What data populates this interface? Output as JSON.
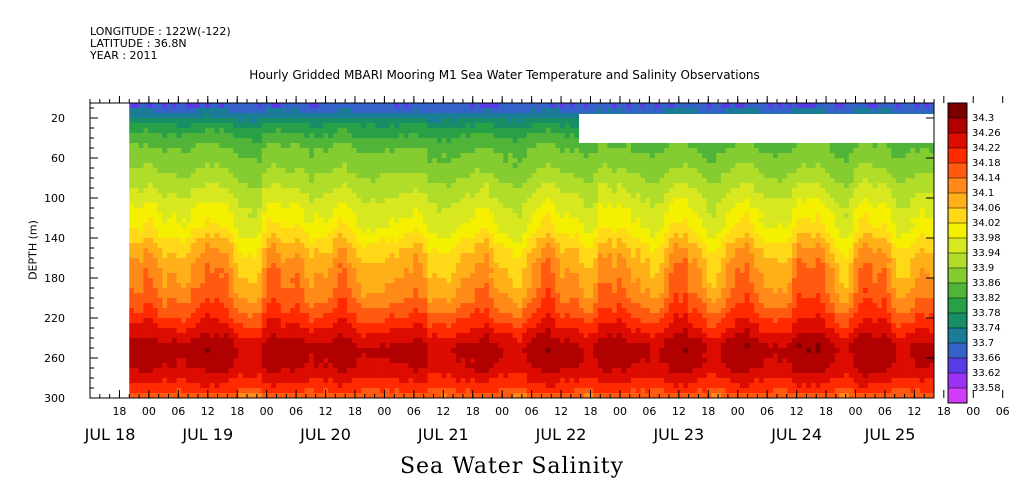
{
  "header": {
    "longitude": "LONGITUDE : 122W(-122)",
    "latitude": "LATITUDE : 36.8N",
    "year": "YEAR : 2011"
  },
  "chart_data": {
    "type": "heatmap",
    "title": "Hourly Gridded MBARI Mooring M1 Sea Water Temperature and Salinity Observations",
    "ylabel": "DEPTH (m)",
    "xlabel": "Sea Water Salinity",
    "ylim": [
      300,
      5
    ],
    "y_ticks": [
      20,
      60,
      100,
      140,
      180,
      220,
      260,
      300
    ],
    "x_hour_ticks": [
      "18",
      "00",
      "06",
      "12",
      "18",
      "00",
      "06",
      "12",
      "18",
      "00",
      "06",
      "12",
      "18",
      "00",
      "06",
      "12",
      "18",
      "00",
      "06",
      "12",
      "18",
      "00",
      "06",
      "12",
      "18",
      "00",
      "06",
      "12",
      "18",
      "00",
      "06",
      "12"
    ],
    "x_day_labels": [
      "JUL 18",
      "JUL 19",
      "JUL 20",
      "JUL 21",
      "JUL 22",
      "JUL 23",
      "JUL 24",
      "JUL 25"
    ],
    "x_range": [
      "2011-07-18T12:00",
      "2011-07-25T16:00"
    ],
    "data_start": "2011-07-18T20:00",
    "colorbar": {
      "levels": [
        "34.3",
        "34.26",
        "34.22",
        "34.18",
        "34.14",
        "34.1",
        "34.06",
        "34.02",
        "33.98",
        "33.94",
        "33.9",
        "33.86",
        "33.82",
        "33.78",
        "33.74",
        "33.7",
        "33.66",
        "33.62",
        "33.58"
      ],
      "colors": [
        "#7a0000",
        "#b00000",
        "#dc0c00",
        "#ff2a00",
        "#ff5a10",
        "#ff8a18",
        "#ffb018",
        "#ffd818",
        "#f4f000",
        "#d8e820",
        "#b0dc2a",
        "#84cc30",
        "#50b438",
        "#28a048",
        "#188e66",
        "#1a7c96",
        "#3462c8",
        "#5a3ce6",
        "#9c32f2",
        "#d23cf8"
      ]
    },
    "depth_profile_mean": [
      {
        "depth": 10,
        "salinity": 33.68
      },
      {
        "depth": 30,
        "salinity": 33.8
      },
      {
        "depth": 50,
        "salinity": 33.86
      },
      {
        "depth": 70,
        "salinity": 33.89
      },
      {
        "depth": 90,
        "salinity": 33.93
      },
      {
        "depth": 110,
        "salinity": 33.97
      },
      {
        "depth": 130,
        "salinity": 34.0
      },
      {
        "depth": 150,
        "salinity": 34.06
      },
      {
        "depth": 170,
        "salinity": 34.1
      },
      {
        "depth": 190,
        "salinity": 34.12
      },
      {
        "depth": 210,
        "salinity": 34.16
      },
      {
        "depth": 230,
        "salinity": 34.22
      },
      {
        "depth": 250,
        "salinity": 34.28
      },
      {
        "depth": 270,
        "salinity": 34.26
      },
      {
        "depth": 290,
        "salinity": 34.2
      },
      {
        "depth": 300,
        "salinity": 34.14
      }
    ]
  }
}
